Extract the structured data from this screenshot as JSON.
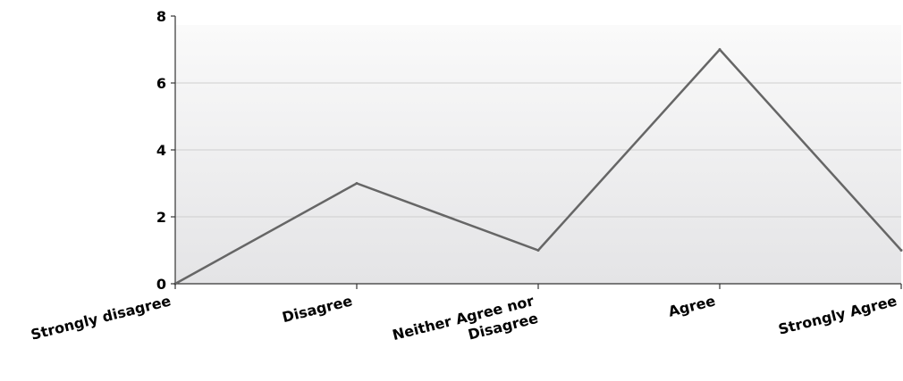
{
  "chart_data": {
    "type": "line",
    "categories": [
      "Strongly disagree",
      "Disagree",
      "Neither Agree nor Disagree",
      "Agree",
      "Strongly Agree"
    ],
    "category_lines": [
      [
        "Strongly disagree"
      ],
      [
        "Disagree"
      ],
      [
        "Neither Agree nor",
        "Disagree"
      ],
      [
        "Agree"
      ],
      [
        "Strongly Agree"
      ]
    ],
    "series": [
      {
        "values": [
          0,
          3,
          1,
          7,
          1
        ],
        "color": "#666666"
      }
    ],
    "y_ticks": [
      "0",
      "2",
      "4",
      "6",
      "8"
    ],
    "ylim": [
      0,
      8
    ],
    "title": "",
    "xlabel": "",
    "ylabel": "",
    "grid": true,
    "legend": false,
    "colors": {
      "background_top": "#fafafa",
      "background_bottom": "#e4e4e6",
      "grid": "#cfcfcf",
      "axis": "#333333",
      "line": "#666666"
    }
  }
}
